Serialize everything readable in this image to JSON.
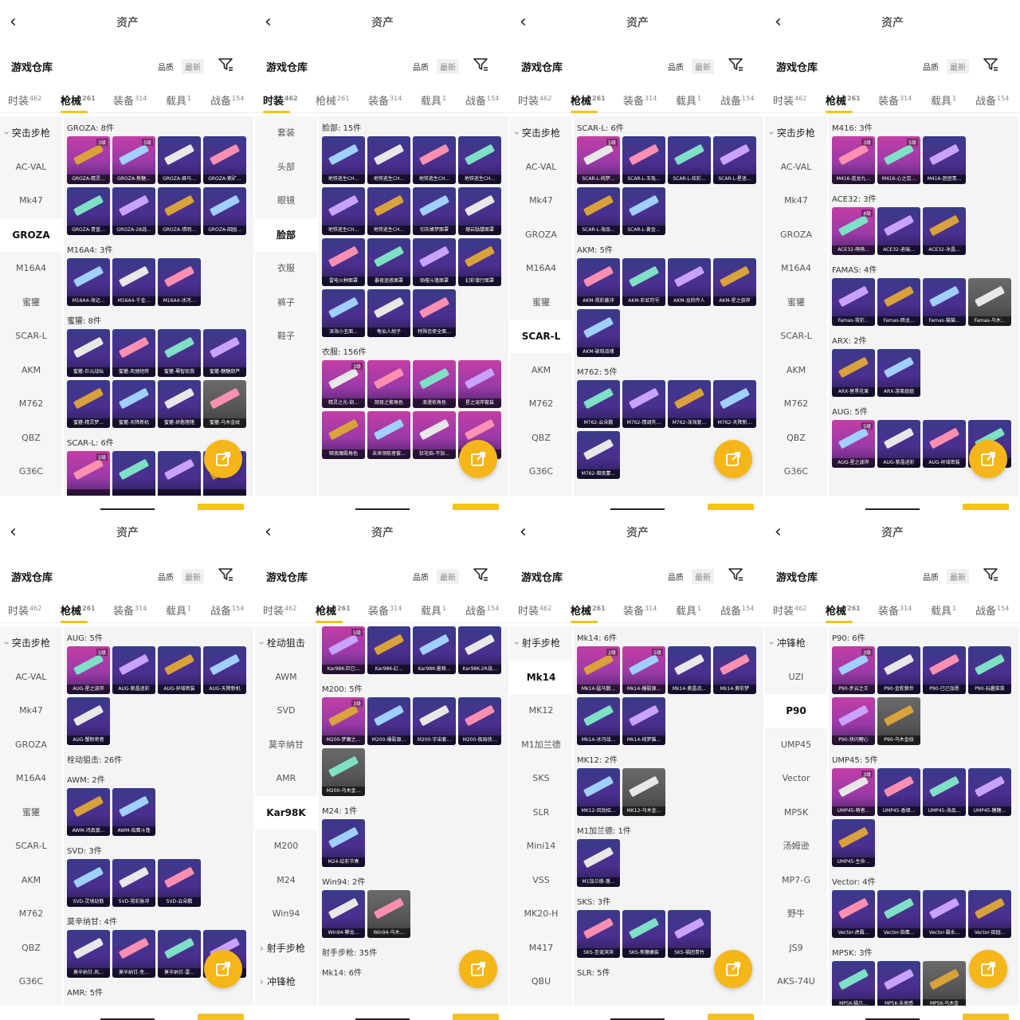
{
  "common": {
    "page_title": "资产",
    "warehouse": "游戏仓库",
    "sort_quality": "品质",
    "sort_latest": "最新",
    "tabs": [
      {
        "label": "时装",
        "count": "462"
      },
      {
        "label": "枪械",
        "count": "261"
      },
      {
        "label": "装备",
        "count": "314"
      },
      {
        "label": "载具",
        "count": "1"
      },
      {
        "label": "战备",
        "count": "154"
      }
    ],
    "colors": {
      "accent": "#f5c11e",
      "card_purple": "#4b2f8f",
      "card_pink": "#c23ea5"
    }
  },
  "panels": [
    {
      "active_tab": 1,
      "sidebar": [
        {
          "label": "突击步枪",
          "type": "group"
        },
        {
          "label": "AC-VAL"
        },
        {
          "label": "Mk47"
        },
        {
          "label": "GROZA",
          "active": true
        },
        {
          "label": "M16A4"
        },
        {
          "label": "蜜獾"
        },
        {
          "label": "SCAR-L"
        },
        {
          "label": "AKM"
        },
        {
          "label": "M762"
        },
        {
          "label": "QBZ"
        },
        {
          "label": "G36C"
        }
      ],
      "sections": [
        {
          "title": "GROZA: 8件",
          "items": [
            {
              "label": "GROZA-精灵...",
              "level": "3级",
              "style": "pink"
            },
            {
              "label": "GROZA-焦糖...",
              "level": "5级",
              "style": "pink"
            },
            {
              "label": "GROZA-烙马..."
            },
            {
              "label": "GROZA-紫矿..."
            },
            {
              "label": "GROZA-青蓝..."
            },
            {
              "label": "GROZA-28战..."
            },
            {
              "label": "GROZA-惜明..."
            },
            {
              "label": "GROZA-田园..."
            }
          ]
        },
        {
          "title": "M16A4: 3件",
          "items": [
            {
              "label": "M16A4-海记..."
            },
            {
              "label": "M16A4-千金..."
            },
            {
              "label": "M16A4-冰河..."
            }
          ]
        },
        {
          "title": "蜜獾: 8件",
          "items": [
            {
              "label": "蜜獾-巨元战坛"
            },
            {
              "label": "蜜獾-风驰短砖"
            },
            {
              "label": "蜜獾-蓦智凯我"
            },
            {
              "label": "蜜獾-糖糖葫芦"
            },
            {
              "label": "蜜獾-精灵梦..."
            },
            {
              "label": "蜜獾-天降新机"
            },
            {
              "label": "蜜獾-娇憨猪猪"
            },
            {
              "label": "蜜獾-乌木金纹",
              "style": "gray"
            }
          ]
        },
        {
          "title": "SCAR-L: 6件",
          "items": [
            {
              "label": "",
              "level": "5级",
              "style": "pink"
            },
            {
              "label": ""
            },
            {
              "label": ""
            },
            {
              "label": ""
            }
          ]
        }
      ]
    },
    {
      "active_tab": 0,
      "sidebar": [
        {
          "label": "套装"
        },
        {
          "label": "头部"
        },
        {
          "label": "眼镜"
        },
        {
          "label": "脸部",
          "active": true
        },
        {
          "label": "衣服"
        },
        {
          "label": "裤子"
        },
        {
          "label": "鞋子"
        }
      ],
      "sections": [
        {
          "title": "脸部: 15件",
          "items": [
            {
              "label": "地铁逃生CH..."
            },
            {
              "label": "地铁逃生CH..."
            },
            {
              "label": "地铁逃生CH..."
            },
            {
              "label": "地铁逃生CH..."
            },
            {
              "label": "地铁逃生CH..."
            },
            {
              "label": "地铁逃生CH..."
            },
            {
              "label": "切灰蜂梦面罩"
            },
            {
              "label": "熔岩骷髅面罩"
            },
            {
              "label": "雷电火种面罩"
            },
            {
              "label": "暴夜迷惑面罩"
            },
            {
              "label": "焰噬斗篷面罩"
            },
            {
              "label": "幻彩潜行面罩"
            },
            {
              "label": "深海小丑面..."
            },
            {
              "label": "龟仙人胡子"
            },
            {
              "label": "特殊信使全面..."
            }
          ]
        },
        {
          "title": "衣服: 156件",
          "items": [
            {
              "label": "精灵之光-刻...",
              "level": "3级",
              "style": "pink"
            },
            {
              "label": "韶夜之紫角色",
              "style": "pink"
            },
            {
              "label": "浪漫依角色",
              "style": "pink"
            },
            {
              "label": "星之宠岸套装",
              "style": "pink"
            },
            {
              "label": "暗夜魔殿角色",
              "style": "pink"
            },
            {
              "label": "未来领航者套...",
              "style": "pink"
            },
            {
              "label": "狂花焰-不加...",
              "style": "pink"
            },
            {
              "label": "",
              "style": "pink"
            }
          ]
        }
      ]
    },
    {
      "active_tab": 1,
      "sidebar": [
        {
          "label": "突击步枪",
          "type": "group"
        },
        {
          "label": "AC-VAL"
        },
        {
          "label": "Mk47"
        },
        {
          "label": "GROZA"
        },
        {
          "label": "M16A4"
        },
        {
          "label": "蜜獾"
        },
        {
          "label": "SCAR-L",
          "active": true
        },
        {
          "label": "AKM"
        },
        {
          "label": "M762"
        },
        {
          "label": "QBZ"
        },
        {
          "label": "G36C"
        }
      ],
      "sections": [
        {
          "title": "SCAR-L: 6件",
          "items": [
            {
              "label": "SCAR-L-纯梦...",
              "level": "5级",
              "style": "pink"
            },
            {
              "label": "SCAR-L-玉兔..."
            },
            {
              "label": "SCAR-L-炫彩..."
            },
            {
              "label": "SCAR-L-星迷..."
            },
            {
              "label": "SCAR-L-海品..."
            },
            {
              "label": "SCAR-L-黄金..."
            }
          ]
        },
        {
          "title": "AKM: 5件",
          "items": [
            {
              "label": "AKM-霓彩蔽冲"
            },
            {
              "label": "AKM-彩虹符号"
            },
            {
              "label": "AKM-龙的传人"
            },
            {
              "label": "AKM-星之旅岸"
            },
            {
              "label": "AKM-破晓战魂"
            }
          ]
        },
        {
          "title": "M762: 5件",
          "items": [
            {
              "label": "M762-云朵鹏"
            },
            {
              "label": "M762-情调失..."
            },
            {
              "label": "M762-深海复..."
            },
            {
              "label": "M762-天降新..."
            },
            {
              "label": "M762-暗夜蒙..."
            }
          ]
        }
      ]
    },
    {
      "active_tab": 1,
      "sidebar": [
        {
          "label": "突击步枪",
          "type": "group"
        },
        {
          "label": "AC-VAL"
        },
        {
          "label": "Mk47"
        },
        {
          "label": "GROZA"
        },
        {
          "label": "M16A4"
        },
        {
          "label": "蜜獾"
        },
        {
          "label": "SCAR-L"
        },
        {
          "label": "AKM"
        },
        {
          "label": "M762"
        },
        {
          "label": "QBZ"
        },
        {
          "label": "G36C"
        }
      ],
      "sections": [
        {
          "title": "M416: 3件",
          "items": [
            {
              "label": "M416-蓝龙九...",
              "level": "3级",
              "style": "pink"
            },
            {
              "label": "M416-心之恋...",
              "level": "5级",
              "style": "pink"
            },
            {
              "label": "M416-团团青..."
            }
          ]
        },
        {
          "title": "ACE32: 3件",
          "items": [
            {
              "label": "ACE32-萌萌...",
              "level": "4级",
              "style": "pink"
            },
            {
              "label": "ACE32-迪瑞..."
            },
            {
              "label": "ACE32-冰晶..."
            }
          ]
        },
        {
          "title": "FAMAS: 4件",
          "items": [
            {
              "label": "Famas-霓彩..."
            },
            {
              "label": "Famas-暗龙..."
            },
            {
              "label": "Famas-猫猫..."
            },
            {
              "label": "Famas-乌木...",
              "style": "gray"
            }
          ]
        },
        {
          "title": "ARX: 2件",
          "items": [
            {
              "label": "ARX-替黑花果"
            },
            {
              "label": "ARX-游离姐姐"
            }
          ]
        },
        {
          "title": "AUG: 5件",
          "items": [
            {
              "label": "AUG-星之波岸",
              "level": "5级",
              "style": "pink"
            },
            {
              "label": "AUG-紫晶迷彩"
            },
            {
              "label": "AUG-异域密装"
            },
            {
              "label": "AUG-天..."
            }
          ]
        }
      ]
    },
    {
      "active_tab": 1,
      "sidebar": [
        {
          "label": "突击步枪",
          "type": "group"
        },
        {
          "label": "AC-VAL"
        },
        {
          "label": "Mk47"
        },
        {
          "label": "GROZA"
        },
        {
          "label": "M16A4"
        },
        {
          "label": "蜜獾"
        },
        {
          "label": "SCAR-L"
        },
        {
          "label": "AKM"
        },
        {
          "label": "M762"
        },
        {
          "label": "QBZ"
        },
        {
          "label": "G36C"
        }
      ],
      "sections": [
        {
          "title": "AUG: 5件",
          "items": [
            {
              "label": "AUG-星之波岸",
              "level": "5级",
              "style": "pink"
            },
            {
              "label": "AUG-紫晶迷彩"
            },
            {
              "label": "AUG-异域密装"
            },
            {
              "label": "AUG-天降新机"
            },
            {
              "label": "AUG-蟹粉密者"
            }
          ]
        },
        {
          "title": "栓动狙击: 26件",
          "items": []
        },
        {
          "title": "AWM: 2件",
          "items": [
            {
              "label": "AWM-鸿真澈..."
            },
            {
              "label": "AWM-焰鹰斗篷"
            }
          ]
        },
        {
          "title": "SVD: 3件",
          "items": [
            {
              "label": "SVD-灵境幼筋"
            },
            {
              "label": "SVD-霓彩脉冲"
            },
            {
              "label": "SVD-云朵鹏"
            }
          ]
        },
        {
          "title": "莫辛纳甘: 4件",
          "items": [
            {
              "label": "莫辛纳甘-风..."
            },
            {
              "label": "莫辛纳甘-免..."
            },
            {
              "label": "莫辛纳甘-雷..."
            },
            {
              "label": "莫辛纳甘-情..."
            }
          ]
        },
        {
          "title": "AMR: 5件",
          "items": []
        }
      ]
    },
    {
      "active_tab": 1,
      "sidebar": [
        {
          "label": "栓动狙击",
          "type": "group"
        },
        {
          "label": "AWM"
        },
        {
          "label": "SVD"
        },
        {
          "label": "莫辛纳甘"
        },
        {
          "label": "AMR"
        },
        {
          "label": "Kar98K",
          "active": true
        },
        {
          "label": "M200"
        },
        {
          "label": "M24"
        },
        {
          "label": "Win94"
        },
        {
          "label": "射手步枪",
          "type": "group",
          "collapsed": true
        },
        {
          "label": "冲锋枪",
          "type": "group",
          "collapsed": true
        }
      ],
      "sections": [
        {
          "title": "",
          "items": [
            {
              "label": "Kar98K-巨已...",
              "level": "5级",
              "style": "pink"
            },
            {
              "label": "Kar98K-幻..."
            },
            {
              "label": "Kar98K-墨骑..."
            },
            {
              "label": "Kar98K-2R战..."
            }
          ]
        },
        {
          "title": "M200: 5件",
          "items": [
            {
              "label": "M200-梦魔之...",
              "level": "3级",
              "style": "pink"
            },
            {
              "label": "M200-爆裂源..."
            },
            {
              "label": "M200-宇宙套..."
            },
            {
              "label": "M200-极局侠..."
            },
            {
              "label": "M200-乌木金...",
              "style": "gray"
            }
          ]
        },
        {
          "title": "M24: 1件",
          "items": [
            {
              "label": "M24-绘彩节奏"
            }
          ]
        },
        {
          "title": "Win94: 2件",
          "items": [
            {
              "label": "Win94-攀龙..."
            },
            {
              "label": "Win94-乌木...",
              "style": "gray"
            }
          ]
        },
        {
          "title": "射手步枪: 35件",
          "items": []
        },
        {
          "title": "Mk14: 6件",
          "items": []
        }
      ]
    },
    {
      "active_tab": 1,
      "sidebar": [
        {
          "label": "射手步枪",
          "type": "group"
        },
        {
          "label": "Mk14",
          "active": true
        },
        {
          "label": "MK12"
        },
        {
          "label": "M1加兰德"
        },
        {
          "label": "SKS"
        },
        {
          "label": "SLR"
        },
        {
          "label": "Mini14"
        },
        {
          "label": "VSS"
        },
        {
          "label": "MK20-H"
        },
        {
          "label": "M417"
        },
        {
          "label": "QBU"
        }
      ],
      "sections": [
        {
          "title": "Mk14: 6件",
          "items": [
            {
              "label": "Mk14-猛马散...",
              "level": "2级",
              "style": "pink"
            },
            {
              "label": "Mk14-爆裂源...",
              "level": "5级",
              "style": "pink"
            },
            {
              "label": "Mk14-紫晶流..."
            },
            {
              "label": "Mk14-紫彩梦"
            },
            {
              "label": "Mk14-冰河战..."
            },
            {
              "label": "Mk14-纯梦猫..."
            }
          ]
        },
        {
          "title": "MK12: 2件",
          "items": [
            {
              "label": "MK12-风劲招..."
            },
            {
              "label": "MK12-乌木金...",
              "style": "gray"
            }
          ]
        },
        {
          "title": "M1加兰德: 1件",
          "items": [
            {
              "label": "M1加兰德-落..."
            }
          ]
        },
        {
          "title": "SKS: 3件",
          "items": [
            {
              "label": "SKS-圣诞滨滨"
            },
            {
              "label": "SKS-焦糖康宸"
            },
            {
              "label": "SKS-福团青竹"
            }
          ]
        },
        {
          "title": "SLR: 5件",
          "items": []
        }
      ]
    },
    {
      "active_tab": 1,
      "sidebar": [
        {
          "label": "冲锋枪",
          "type": "group"
        },
        {
          "label": "UZI"
        },
        {
          "label": "P90",
          "active": true
        },
        {
          "label": "UMP45"
        },
        {
          "label": "Vector"
        },
        {
          "label": "MP5K"
        },
        {
          "label": "汤姆逊"
        },
        {
          "label": "MP7-G"
        },
        {
          "label": "野牛"
        },
        {
          "label": "JS9"
        },
        {
          "label": "AKS-74U"
        }
      ],
      "sections": [
        {
          "title": "P90: 6件",
          "items": [
            {
              "label": "P90-步云之王",
              "level": "3级",
              "style": "pink"
            },
            {
              "label": "P90-金蛇狼世"
            },
            {
              "label": "P90-已已加恩"
            },
            {
              "label": "P90-玩趣菜菜"
            },
            {
              "label": "P90-快闪鲤心",
              "style": "pink"
            },
            {
              "label": "P90-乌木金纹",
              "style": "gray"
            }
          ]
        },
        {
          "title": "UMP45: 5件",
          "items": [
            {
              "label": "UMP45-萌者...",
              "level": "3级",
              "style": "pink"
            },
            {
              "label": "UMP45-香缘..."
            },
            {
              "label": "UMP45-海品..."
            },
            {
              "label": "UMP45-糖糖..."
            },
            {
              "label": "UMP45-生命..."
            }
          ]
        },
        {
          "title": "Vector: 4件",
          "items": [
            {
              "label": "Vector-虎霸..."
            },
            {
              "label": "Vector-焰鹰..."
            },
            {
              "label": "Vector-霸水..."
            },
            {
              "label": "Vector-田园..."
            }
          ]
        },
        {
          "title": "MP5K: 3件",
          "items": [
            {
              "label": "MP5K-猫爪..."
            },
            {
              "label": "MP5K-未来感"
            },
            {
              "label": "MP5K-乌木金",
              "style": "gray"
            }
          ]
        }
      ]
    }
  ]
}
